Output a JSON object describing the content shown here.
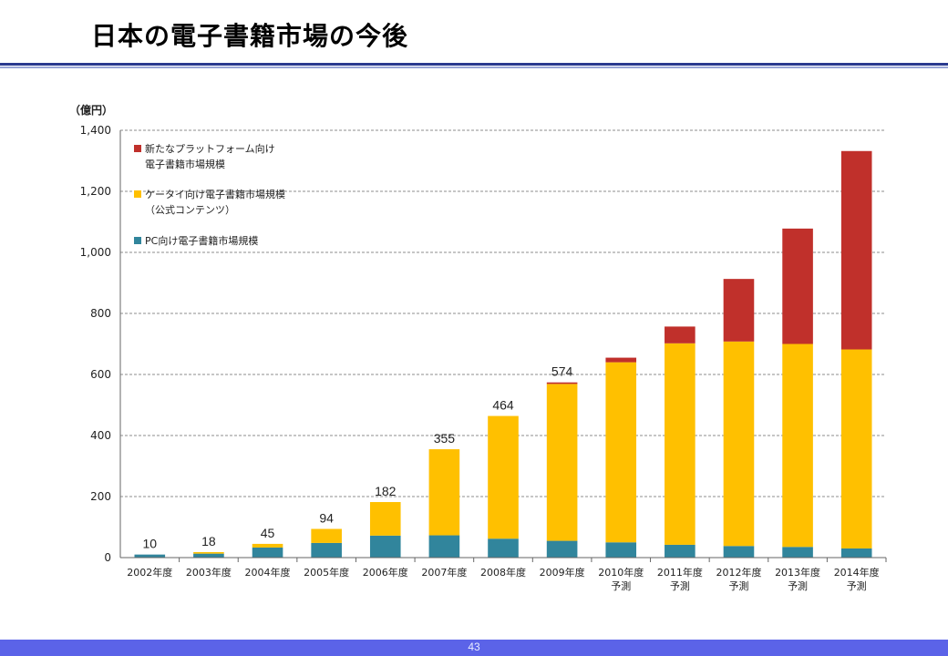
{
  "slide": {
    "title": "日本の電子書籍市場の今後",
    "page_number": "43"
  },
  "colors": {
    "platform": "#c0302b",
    "mobile": "#ffc000",
    "pc": "#31859c",
    "title_rule": "#2a3a8f",
    "footer": "#5b63e8"
  },
  "chart_data": {
    "type": "bar",
    "stacked": true,
    "y_unit_label": "（億円）",
    "ylim": [
      0,
      1400
    ],
    "yticks": [
      "0",
      "200",
      "400",
      "600",
      "800",
      "1,000",
      "1,200",
      "1,400"
    ],
    "ytick_values": [
      0,
      200,
      400,
      600,
      800,
      1000,
      1200,
      1400
    ],
    "grid": true,
    "legend_position": "top-left",
    "categories": [
      [
        "2002年度"
      ],
      [
        "2003年度"
      ],
      [
        "2004年度"
      ],
      [
        "2005年度"
      ],
      [
        "2006年度"
      ],
      [
        "2007年度"
      ],
      [
        "2008年度"
      ],
      [
        "2009年度"
      ],
      [
        "2010年度",
        "予測"
      ],
      [
        "2011年度",
        "予測"
      ],
      [
        "2012年度",
        "予測"
      ],
      [
        "2013年度",
        "予測"
      ],
      [
        "2014年度",
        "予測"
      ]
    ],
    "series": [
      {
        "name": [
          "PC向け電子書籍市場規模"
        ],
        "color": "#31859c",
        "values": [
          10,
          13,
          33,
          48,
          72,
          73,
          62,
          55,
          50,
          42,
          38,
          35,
          30
        ]
      },
      {
        "name": [
          "ケータイ向け電子書籍市場規模",
          "（公式コンテンツ）"
        ],
        "color": "#ffc000",
        "values": [
          0,
          5,
          12,
          46,
          110,
          282,
          402,
          514,
          590,
          660,
          670,
          665,
          652
        ]
      },
      {
        "name": [
          "新たなプラットフォーム向け",
          "電子書籍市場規模"
        ],
        "color": "#c0302b",
        "values": [
          0,
          0,
          0,
          0,
          0,
          0,
          0,
          5,
          15,
          55,
          205,
          378,
          650
        ]
      }
    ],
    "data_labels": [
      "10",
      "18",
      "45",
      "94",
      "182",
      "355",
      "464",
      "574",
      "",
      "",
      "",
      "",
      ""
    ]
  }
}
